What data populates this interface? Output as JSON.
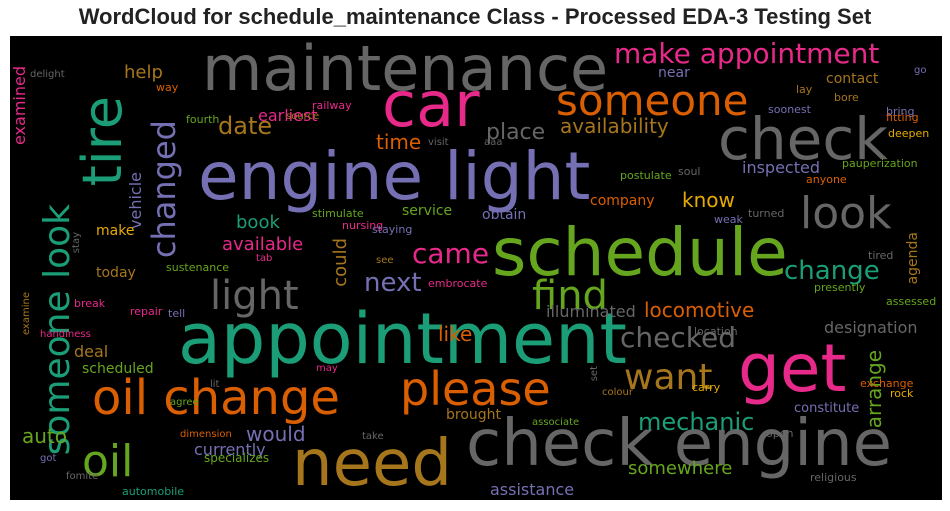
{
  "title": "WordCloud for schedule_maintenance Class - Processed EDA-3 Testing Set",
  "colors": {
    "background": "#000000",
    "teal": "#1b9e77",
    "orange": "#d95f02",
    "purple": "#7570b3",
    "pink": "#e7298a",
    "green": "#66a61e",
    "gold": "#e6ab02",
    "brown": "#a6761d",
    "gray": "#666666"
  },
  "words": [
    {
      "text": "engine light"
    },
    {
      "text": "schedule"
    },
    {
      "text": "appointment"
    },
    {
      "text": "maintenance"
    },
    {
      "text": "check engine"
    },
    {
      "text": "need"
    },
    {
      "text": "car"
    },
    {
      "text": "get"
    },
    {
      "text": "tire"
    },
    {
      "text": "check"
    },
    {
      "text": "oil change"
    },
    {
      "text": "someone"
    },
    {
      "text": "please"
    },
    {
      "text": "make appointment"
    },
    {
      "text": "someone look"
    },
    {
      "text": "changed"
    },
    {
      "text": "look"
    },
    {
      "text": "light"
    },
    {
      "text": "find"
    },
    {
      "text": "oil"
    },
    {
      "text": "want"
    },
    {
      "text": "checked"
    },
    {
      "text": "change"
    },
    {
      "text": "came"
    },
    {
      "text": "date"
    },
    {
      "text": "mechanic"
    },
    {
      "text": "next"
    },
    {
      "text": "availability"
    },
    {
      "text": "place"
    },
    {
      "text": "time"
    },
    {
      "text": "auto"
    },
    {
      "text": "locomotive"
    },
    {
      "text": "help"
    },
    {
      "text": "book"
    },
    {
      "text": "arrange"
    },
    {
      "text": "would"
    },
    {
      "text": "like"
    },
    {
      "text": "know"
    },
    {
      "text": "available"
    },
    {
      "text": "assistance"
    },
    {
      "text": "somewhere"
    },
    {
      "text": "earliest"
    },
    {
      "text": "designation"
    },
    {
      "text": "could"
    },
    {
      "text": "inspected"
    },
    {
      "text": "illuminated"
    },
    {
      "text": "vehicle"
    },
    {
      "text": "examined"
    },
    {
      "text": "currently"
    },
    {
      "text": "service"
    },
    {
      "text": "obtain"
    },
    {
      "text": "brought"
    },
    {
      "text": "deal"
    },
    {
      "text": "scheduled"
    },
    {
      "text": "today"
    },
    {
      "text": "make"
    },
    {
      "text": "company"
    },
    {
      "text": "agenda"
    },
    {
      "text": "contact"
    },
    {
      "text": "near"
    },
    {
      "text": "specializes"
    },
    {
      "text": "automobile"
    },
    {
      "text": "constitute"
    },
    {
      "text": "exchange"
    },
    {
      "text": "fitting"
    },
    {
      "text": "delight"
    },
    {
      "text": "way"
    },
    {
      "text": "fourth"
    },
    {
      "text": "railway"
    },
    {
      "text": "source"
    },
    {
      "text": "visit"
    },
    {
      "text": "aaa"
    },
    {
      "text": "postulate"
    },
    {
      "text": "soul"
    },
    {
      "text": "soonest"
    },
    {
      "text": "lay"
    },
    {
      "text": "bore"
    },
    {
      "text": "bring"
    },
    {
      "text": "deepen"
    },
    {
      "text": "pauperization"
    },
    {
      "text": "anyone"
    },
    {
      "text": "turned"
    },
    {
      "text": "weak"
    },
    {
      "text": "stimulate"
    },
    {
      "text": "nursing"
    },
    {
      "text": "staying"
    },
    {
      "text": "stay"
    },
    {
      "text": "tab"
    },
    {
      "text": "see"
    },
    {
      "text": "sustenance"
    },
    {
      "text": "embrocate"
    },
    {
      "text": "tired"
    },
    {
      "text": "presently"
    },
    {
      "text": "assessed"
    },
    {
      "text": "break"
    },
    {
      "text": "repair"
    },
    {
      "text": "tell"
    },
    {
      "text": "location"
    },
    {
      "text": "examine"
    },
    {
      "text": "handiness"
    },
    {
      "text": "may"
    },
    {
      "text": "lit"
    },
    {
      "text": "agree"
    },
    {
      "text": "set"
    },
    {
      "text": "colour"
    },
    {
      "text": "carry"
    },
    {
      "text": "rock"
    },
    {
      "text": "dimension"
    },
    {
      "text": "associate"
    },
    {
      "text": "take"
    },
    {
      "text": "open"
    },
    {
      "text": "got"
    },
    {
      "text": "fomite"
    },
    {
      "text": "religious"
    },
    {
      "text": "go"
    }
  ]
}
